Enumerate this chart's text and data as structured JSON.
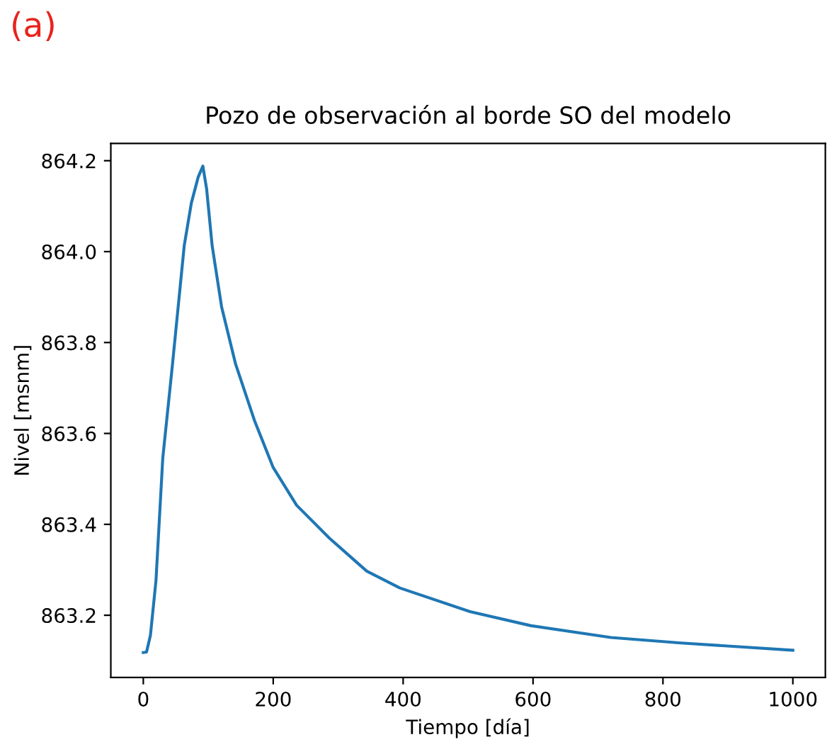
{
  "chart_data": {
    "type": "line",
    "title": "Pozo de observación al borde SO del modelo",
    "xlabel": "Tiempo [día]",
    "ylabel": "Nivel [msnm]",
    "annotations": [
      "(a)"
    ],
    "x": [
      0,
      5,
      11,
      19.5,
      30,
      45,
      63,
      74,
      84.5,
      91.7,
      97.5,
      106,
      120.6,
      142,
      171,
      200,
      236,
      287,
      344,
      395,
      503,
      597,
      720,
      828,
      1000
    ],
    "series": [
      {
        "color": "#1f77b4",
        "values": [
          863.118,
          863.119,
          863.156,
          863.276,
          863.546,
          863.753,
          864.013,
          864.107,
          864.164,
          864.188,
          864.138,
          864.013,
          863.878,
          863.753,
          863.629,
          863.525,
          863.442,
          863.369,
          863.297,
          863.26,
          863.208,
          863.177,
          863.151,
          863.139,
          863.123
        ]
      }
    ],
    "xlim": [
      -50,
      1050
    ],
    "ylim": [
      863.063,
      864.238
    ],
    "xticks": [
      0,
      200,
      400,
      600,
      800,
      1000
    ],
    "yticks": [
      {
        "value": 863.2,
        "label": "863.2"
      },
      {
        "value": 863.4,
        "label": "863.4"
      },
      {
        "value": 863.6,
        "label": "863.6"
      },
      {
        "value": 863.8,
        "label": "863.8"
      },
      {
        "value": 864.0,
        "label": "864.0"
      },
      {
        "value": 864.2,
        "label": "864.2"
      }
    ],
    "grid": false,
    "legend": false,
    "marker": "none",
    "line_style": "solid"
  }
}
